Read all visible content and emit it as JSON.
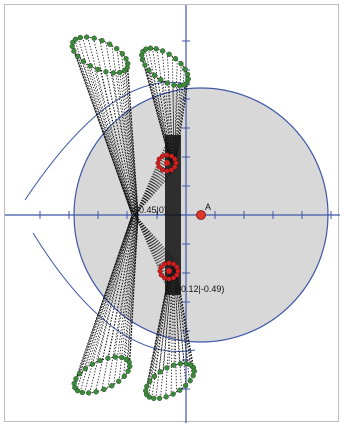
{
  "canvas": {
    "point_a_label": "A",
    "coord_label_upper": "(-0.45|0)",
    "coord_label_lower": "(-0.12|-0.49)"
  },
  "colors": {
    "circle_fill": "#d8d8d8",
    "circle_stroke": "#3f57a8",
    "axis": "#3f57a8",
    "curve": "#111111",
    "green_points": "#3d8a3d",
    "red_points": "#d11f1f",
    "point_a": "#e0372b"
  }
}
